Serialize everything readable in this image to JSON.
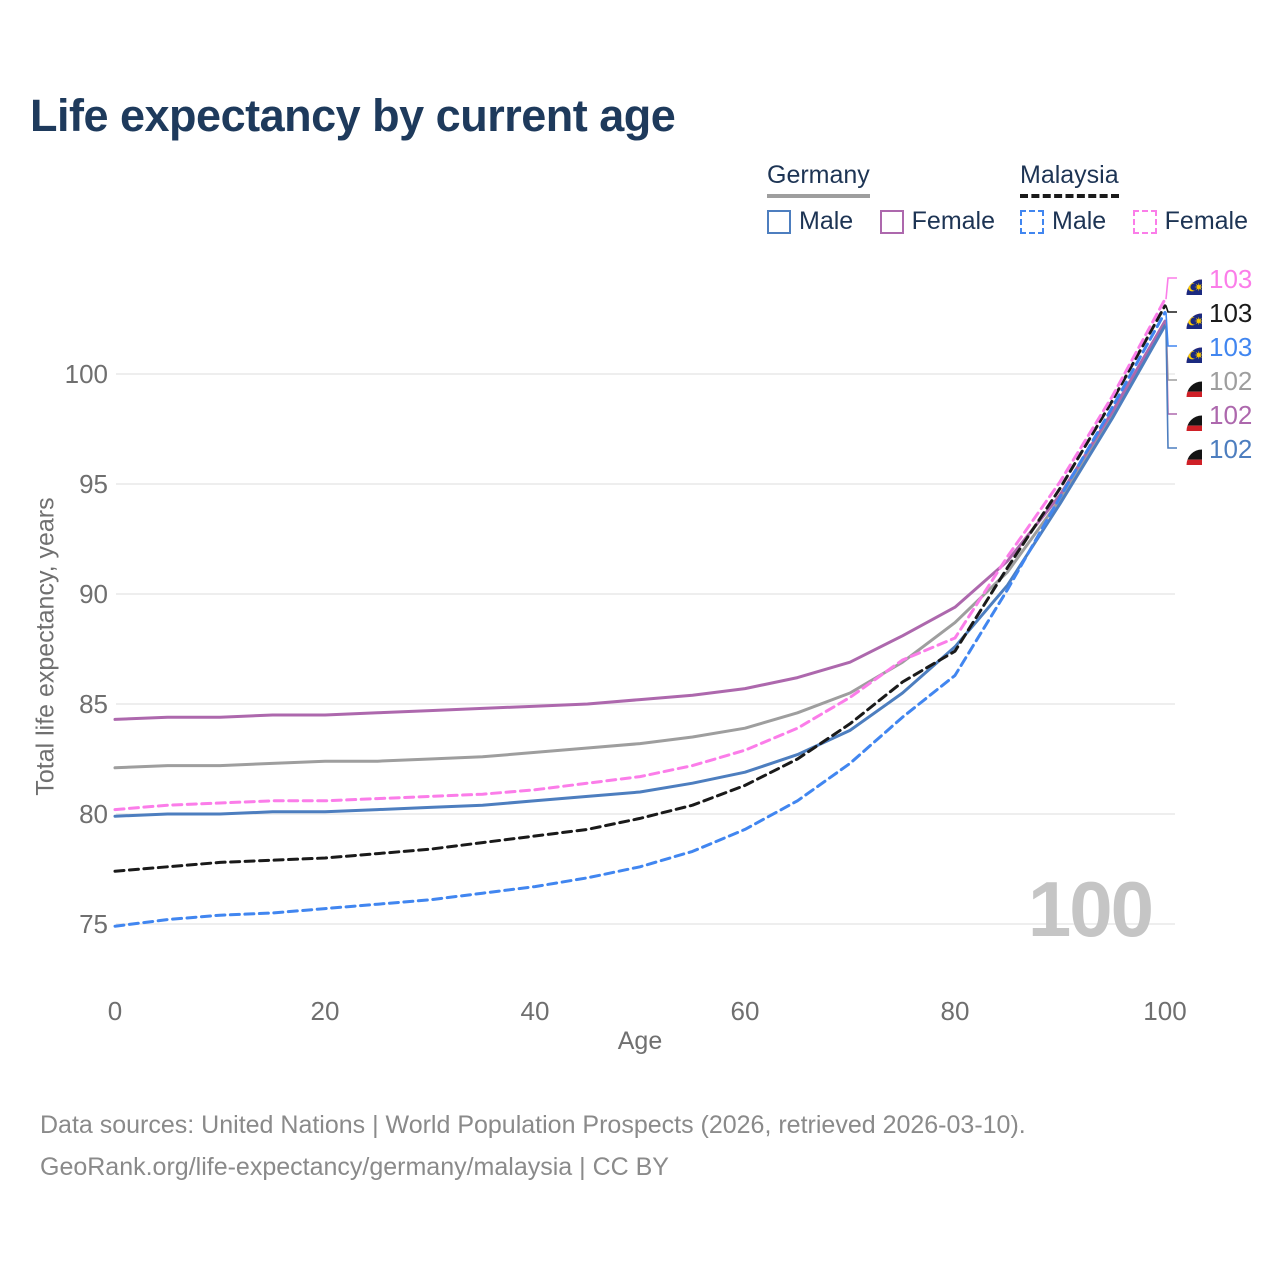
{
  "title": "Life expectancy by current age",
  "legend": {
    "groups": [
      {
        "country": "Germany",
        "underline_color": "#9e9e9e",
        "underline_style": "solid",
        "items": [
          {
            "label": "Male",
            "color": "#4d7ebf"
          },
          {
            "label": "Female",
            "color": "#ad68ad"
          }
        ]
      },
      {
        "country": "Malaysia",
        "underline_color": "#1a1a1a",
        "underline_style": "dashed",
        "items": [
          {
            "label": "Male",
            "color": "#4186f0"
          },
          {
            "label": "Female",
            "color": "#fb7de9"
          }
        ]
      }
    ]
  },
  "chart_data": {
    "type": "line",
    "title": "Life expectancy by current age",
    "xlabel": "Age",
    "ylabel": "Total life expectancy, years",
    "x": [
      0,
      5,
      10,
      15,
      20,
      25,
      30,
      35,
      40,
      45,
      50,
      55,
      60,
      65,
      70,
      75,
      80,
      85,
      90,
      95,
      100
    ],
    "x_ticks": [
      0,
      20,
      40,
      60,
      80,
      100
    ],
    "y_ticks": [
      75,
      80,
      85,
      90,
      95,
      100
    ],
    "xlim": [
      0,
      100
    ],
    "ylim": [
      73.5,
      104.5
    ],
    "grid": "horizontal",
    "legend_position": "top-right",
    "series": [
      {
        "name": "Germany",
        "sex": "both",
        "color": "#9e9e9e",
        "dashed": false,
        "label_row": 3,
        "end_label": "102",
        "values": [
          82.1,
          82.2,
          82.2,
          82.3,
          82.4,
          82.4,
          82.5,
          82.6,
          82.8,
          83.0,
          83.2,
          83.5,
          83.9,
          84.6,
          85.5,
          86.9,
          88.7,
          91.0,
          94.3,
          98.1,
          102.4
        ]
      },
      {
        "name": "Germany Female",
        "sex": "female",
        "color": "#ad68ad",
        "dashed": false,
        "label_row": 4,
        "end_label": "102",
        "values": [
          84.3,
          84.4,
          84.4,
          84.5,
          84.5,
          84.6,
          84.7,
          84.8,
          84.9,
          85.0,
          85.2,
          85.4,
          85.7,
          86.2,
          86.9,
          88.1,
          89.4,
          91.5,
          94.5,
          98.3,
          102.4
        ]
      },
      {
        "name": "Germany Male",
        "sex": "male",
        "color": "#4d7ebf",
        "dashed": false,
        "label_row": 5,
        "end_label": "102",
        "values": [
          79.9,
          80.0,
          80.0,
          80.1,
          80.1,
          80.2,
          80.3,
          80.4,
          80.6,
          80.8,
          81.0,
          81.4,
          81.9,
          82.7,
          83.8,
          85.5,
          87.6,
          90.4,
          94.1,
          98.0,
          102.2
        ]
      },
      {
        "name": "Malaysia",
        "sex": "both",
        "color": "#1a1a1a",
        "dashed": true,
        "label_row": 1,
        "end_label": "103",
        "values": [
          77.4,
          77.6,
          77.8,
          77.9,
          78.0,
          78.2,
          78.4,
          78.7,
          79.0,
          79.3,
          79.8,
          80.4,
          81.3,
          82.5,
          84.1,
          86.0,
          87.4,
          91.2,
          94.8,
          98.8,
          103.1
        ]
      },
      {
        "name": "Malaysia Female",
        "sex": "female",
        "color": "#fb7de9",
        "dashed": true,
        "label_row": 0,
        "end_label": "103",
        "values": [
          80.2,
          80.4,
          80.5,
          80.6,
          80.6,
          80.7,
          80.8,
          80.9,
          81.1,
          81.4,
          81.7,
          82.2,
          82.9,
          83.9,
          85.3,
          87.0,
          88.0,
          91.7,
          95.1,
          99.0,
          103.4
        ]
      },
      {
        "name": "Malaysia Male",
        "sex": "male",
        "color": "#4186f0",
        "dashed": true,
        "label_row": 2,
        "end_label": "103",
        "values": [
          74.9,
          75.2,
          75.4,
          75.5,
          75.7,
          75.9,
          76.1,
          76.4,
          76.7,
          77.1,
          77.6,
          78.3,
          79.3,
          80.6,
          82.3,
          84.4,
          86.3,
          90.2,
          94.4,
          98.5,
          102.8
        ]
      }
    ]
  },
  "right_labels": [
    {
      "value": "103",
      "color": "#fb7de9",
      "country": "Malaysia"
    },
    {
      "value": "103",
      "color": "#1a1a1a",
      "country": "Malaysia"
    },
    {
      "value": "103",
      "color": "#4186f0",
      "country": "Malaysia"
    },
    {
      "value": "102",
      "color": "#9e9e9e",
      "country": "Germany"
    },
    {
      "value": "102",
      "color": "#ad68ad",
      "country": "Germany"
    },
    {
      "value": "102",
      "color": "#4d7ebf",
      "country": "Germany"
    }
  ],
  "watermark": "100",
  "footer": {
    "line1": "Data sources: United Nations | World Population Prospects (2026, retrieved 2026-03-10).",
    "line2": "GeoRank.org/life-expectancy/germany/malaysia | CC BY"
  }
}
